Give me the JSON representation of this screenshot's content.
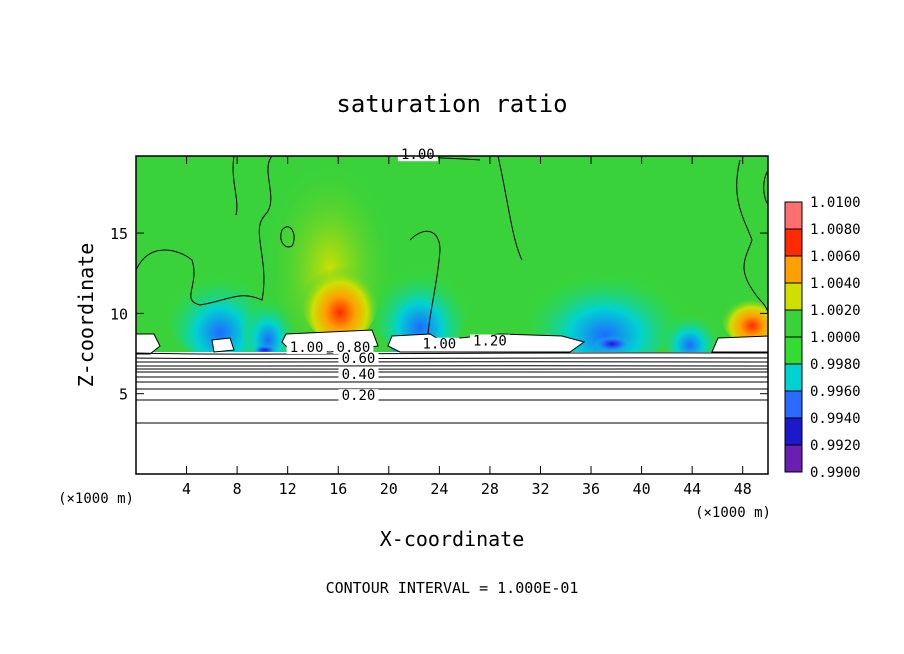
{
  "chart_data": {
    "type": "heatmap",
    "title": "saturation ratio",
    "xlabel": "X-coordinate",
    "ylabel": "Z-coordinate",
    "x_unit_left": "(×1000 m)",
    "x_unit_right": "(×1000 m)",
    "footer": "CONTOUR INTERVAL = 1.000E-01",
    "xlim": [
      0,
      50
    ],
    "ylim": [
      0,
      19.8
    ],
    "x_ticks": [
      4,
      8,
      12,
      16,
      20,
      24,
      28,
      32,
      36,
      40,
      44,
      48
    ],
    "y_ticks": [
      5,
      10,
      15
    ],
    "colorbar": {
      "levels": [
        "0.9900",
        "0.9920",
        "0.9940",
        "0.9960",
        "0.9980",
        "1.0000",
        "1.0020",
        "1.0040",
        "1.0060",
        "1.0080",
        "1.0100"
      ],
      "colors": [
        "#6a1fb0",
        "#1a1acc",
        "#2a6aff",
        "#00d2d2",
        "#32dc32",
        "#3ad23a",
        "#cfe000",
        "#ff9f00",
        "#ff2a00",
        "#ff6f6f"
      ]
    },
    "contour_labels": [
      {
        "text": "1.00",
        "x": 22.3,
        "y": 19.6
      },
      {
        "text": "1.00",
        "x": 13.5,
        "y": 7.6
      },
      {
        "text": "0.80",
        "x": 17.2,
        "y": 7.6
      },
      {
        "text": "0.60",
        "x": 17.6,
        "y": 6.9
      },
      {
        "text": "0.40",
        "x": 17.6,
        "y": 5.9
      },
      {
        "text": "0.20",
        "x": 17.6,
        "y": 4.6
      },
      {
        "text": "1.00",
        "x": 24.0,
        "y": 7.8
      },
      {
        "text": "1.20",
        "x": 28.0,
        "y": 8.0
      }
    ],
    "grid": false
  }
}
